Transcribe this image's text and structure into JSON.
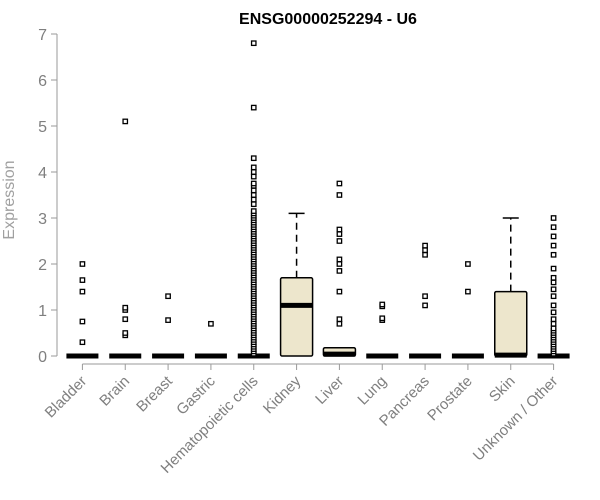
{
  "chart_data": {
    "type": "box",
    "title": "ENSG00000252294 - U6",
    "xlabel": "",
    "ylabel": "Expression",
    "ylim": [
      0,
      7
    ],
    "yticks": [
      0,
      1,
      2,
      3,
      4,
      5,
      6,
      7
    ],
    "grid": false,
    "box_fill": "#ede6cc",
    "categories": [
      "Bladder",
      "Brain",
      "Breast",
      "Gastric",
      "Hematopoietic cells",
      "Kidney",
      "Liver",
      "Lung",
      "Pancreas",
      "Prostate",
      "Skin",
      "Unknown / Other"
    ],
    "boxes": [
      {
        "category": "Bladder",
        "q1": 0,
        "median": 0,
        "q3": 0,
        "whisker_low": 0,
        "whisker_high": 0,
        "outliers": [
          0.3,
          0.75,
          1.4,
          1.65,
          2.0
        ]
      },
      {
        "category": "Brain",
        "q1": 0,
        "median": 0,
        "q3": 0,
        "whisker_low": 0,
        "whisker_high": 0,
        "outliers": [
          0.45,
          0.5,
          0.8,
          1.0,
          1.05,
          5.1
        ]
      },
      {
        "category": "Breast",
        "q1": 0,
        "median": 0,
        "q3": 0,
        "whisker_low": 0,
        "whisker_high": 0,
        "outliers": [
          0.78,
          1.3
        ]
      },
      {
        "category": "Gastric",
        "q1": 0,
        "median": 0,
        "q3": 0,
        "whisker_low": 0,
        "whisker_high": 0,
        "outliers": [
          0.7
        ]
      },
      {
        "category": "Hematopoietic cells",
        "q1": 0,
        "median": 0,
        "q3": 0,
        "whisker_low": 0,
        "whisker_high": 0,
        "outliers": [
          0.05,
          0.1,
          0.15,
          0.2,
          0.25,
          0.3,
          0.35,
          0.4,
          0.45,
          0.5,
          0.55,
          0.6,
          0.65,
          0.7,
          0.75,
          0.8,
          0.85,
          0.9,
          0.95,
          1.0,
          1.05,
          1.1,
          1.15,
          1.2,
          1.25,
          1.3,
          1.35,
          1.4,
          1.45,
          1.5,
          1.55,
          1.6,
          1.65,
          1.7,
          1.75,
          1.8,
          1.85,
          1.9,
          1.95,
          2.0,
          2.05,
          2.1,
          2.15,
          2.2,
          2.25,
          2.3,
          2.35,
          2.4,
          2.45,
          2.5,
          2.55,
          2.6,
          2.65,
          2.7,
          2.75,
          2.8,
          2.85,
          2.9,
          2.95,
          3.0,
          3.05,
          3.1,
          3.15,
          3.3,
          3.4,
          3.5,
          3.6,
          3.7,
          3.75,
          3.9,
          4.0,
          4.1,
          4.3,
          5.4,
          6.8
        ]
      },
      {
        "category": "Kidney",
        "q1": 0,
        "median": 1.1,
        "q3": 1.7,
        "whisker_low": 0,
        "whisker_high": 3.1,
        "outliers": []
      },
      {
        "category": "Liver",
        "q1": 0,
        "median": 0.04,
        "q3": 0.18,
        "whisker_low": 0,
        "whisker_high": 0.18,
        "outliers": [
          0.7,
          0.8,
          1.4,
          1.85,
          2.0,
          2.1,
          2.5,
          2.65,
          2.75,
          3.5,
          3.75
        ]
      },
      {
        "category": "Lung",
        "q1": 0,
        "median": 0,
        "q3": 0,
        "whisker_low": 0,
        "whisker_high": 0,
        "outliers": [
          0.78,
          0.82,
          1.08,
          1.12
        ]
      },
      {
        "category": "Pancreas",
        "q1": 0,
        "median": 0,
        "q3": 0,
        "whisker_low": 0,
        "whisker_high": 0,
        "outliers": [
          1.1,
          1.3,
          2.2,
          2.3,
          2.4
        ]
      },
      {
        "category": "Prostate",
        "q1": 0,
        "median": 0,
        "q3": 0,
        "whisker_low": 0,
        "whisker_high": 0,
        "outliers": [
          1.4,
          2.0
        ]
      },
      {
        "category": "Skin",
        "q1": 0,
        "median": 0.02,
        "q3": 1.4,
        "whisker_low": 0,
        "whisker_high": 3.0,
        "outliers": []
      },
      {
        "category": "Unknown / Other",
        "q1": 0,
        "median": 0,
        "q3": 0,
        "whisker_low": 0,
        "whisker_high": 0,
        "outliers": [
          0.05,
          0.1,
          0.15,
          0.2,
          0.25,
          0.3,
          0.35,
          0.4,
          0.45,
          0.5,
          0.55,
          0.6,
          0.7,
          0.8,
          0.95,
          1.1,
          1.3,
          1.45,
          1.6,
          1.7,
          1.9,
          2.2,
          2.4,
          2.6,
          2.8,
          3.0
        ]
      }
    ]
  }
}
